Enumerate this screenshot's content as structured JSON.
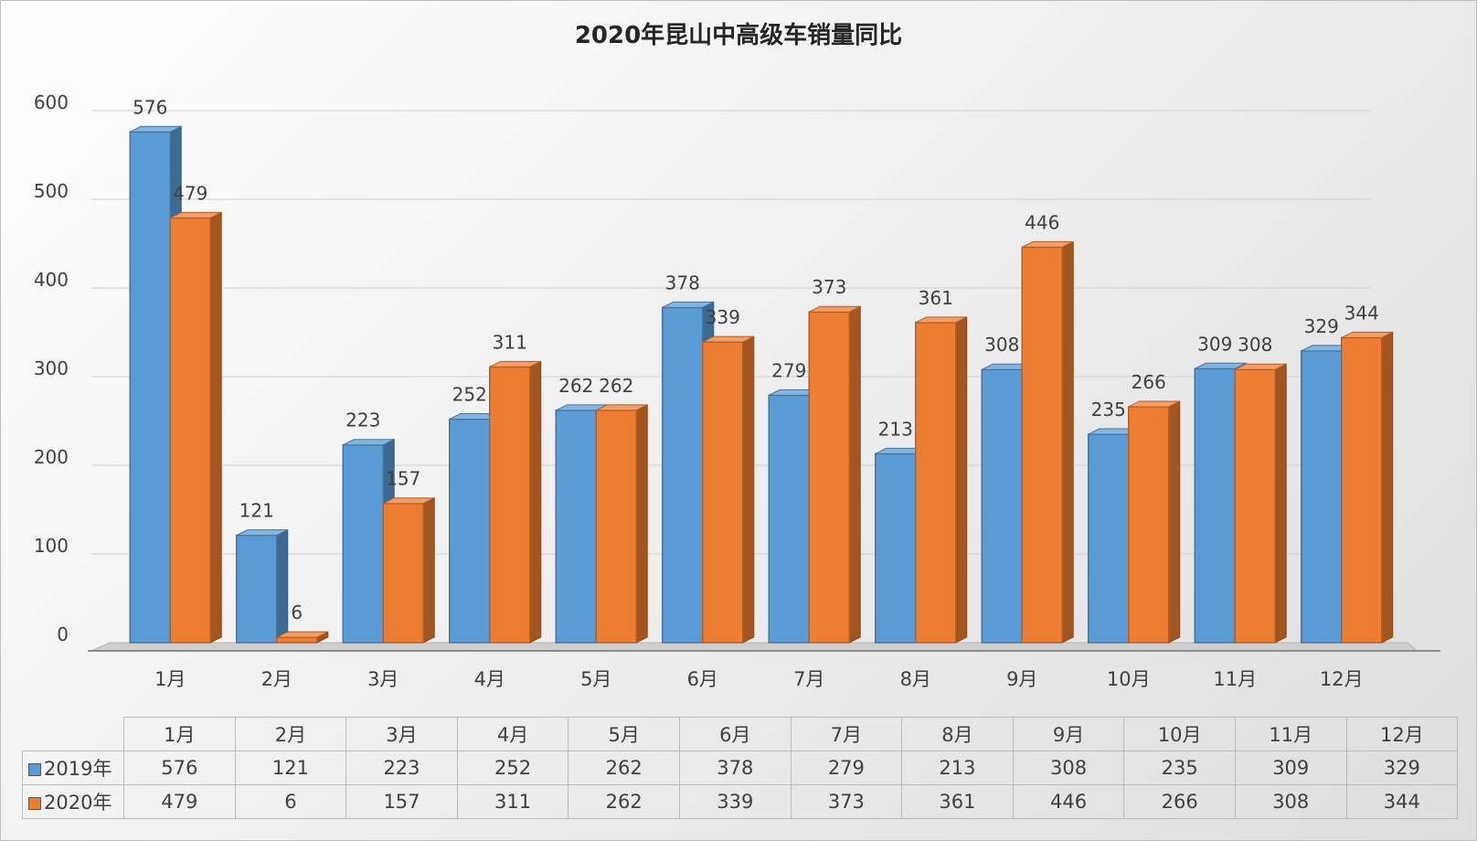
{
  "colors": {
    "s2019": "#5b9bd5",
    "s2020": "#ed7d31"
  },
  "chart_data": {
    "type": "bar",
    "title": "2020年昆山中高级车销量同比",
    "categories": [
      "1月",
      "2月",
      "3月",
      "4月",
      "5月",
      "6月",
      "7月",
      "8月",
      "9月",
      "10月",
      "11月",
      "12月"
    ],
    "series": [
      {
        "name": "2019年",
        "values": [
          576,
          121,
          223,
          252,
          262,
          378,
          279,
          213,
          308,
          235,
          309,
          329
        ]
      },
      {
        "name": "2020年",
        "values": [
          479,
          6,
          157,
          311,
          262,
          339,
          373,
          361,
          446,
          266,
          308,
          344
        ]
      }
    ],
    "yticks": [
      0,
      100,
      200,
      300,
      400,
      500,
      600
    ],
    "ylim": [
      0,
      600
    ],
    "grid": true,
    "legend": "data table below chart"
  }
}
